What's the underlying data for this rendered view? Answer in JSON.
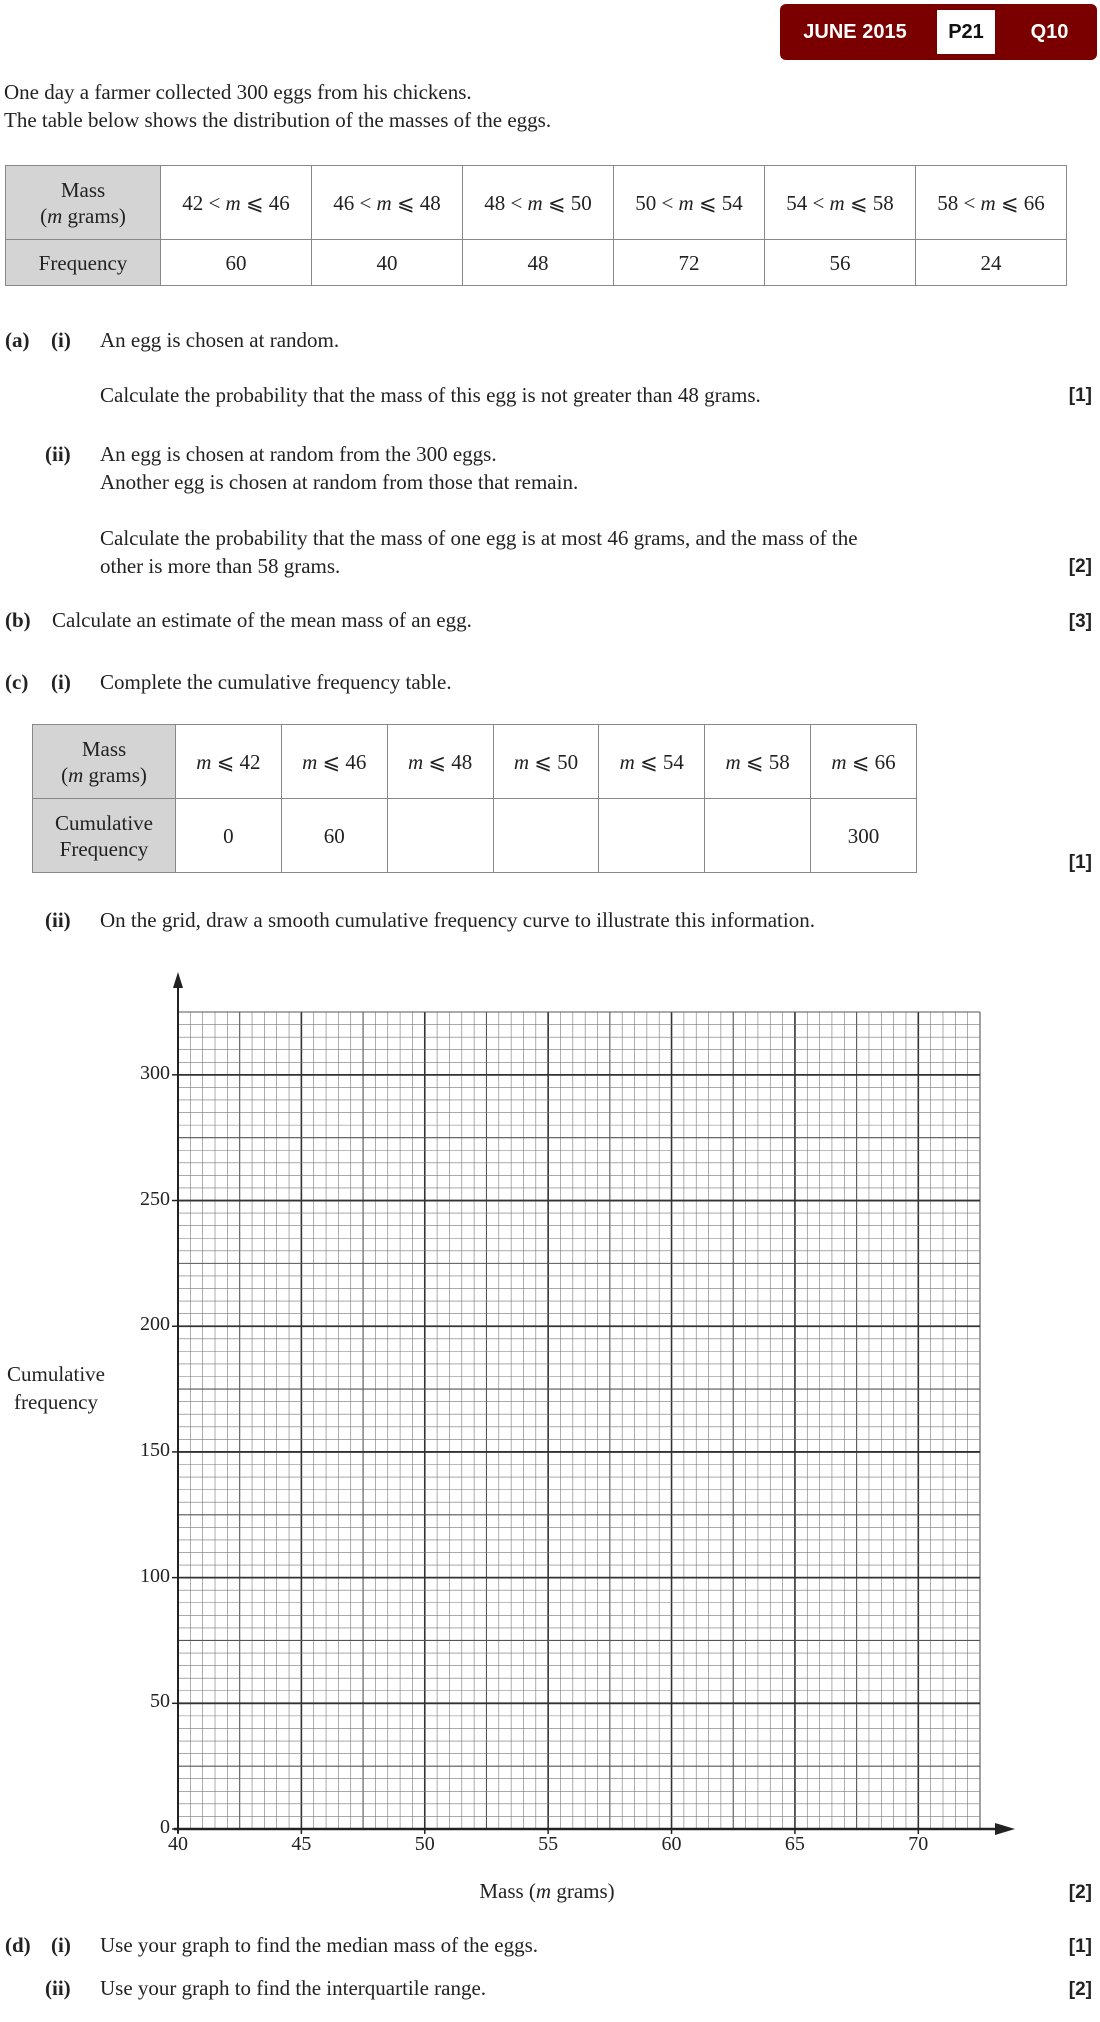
{
  "badge": {
    "session": "JUNE 2015",
    "paper": "P21",
    "question": "Q10",
    "color": "#7a0000"
  },
  "intro": [
    "One day a farmer collected 300 eggs from his chickens.",
    "The table below shows the distribution of the masses of the eggs."
  ],
  "freq_table": {
    "row_headers": [
      "Mass",
      "(m grams)",
      "Frequency"
    ],
    "classes": [
      "42 < m ⩽ 46",
      "46 < m ⩽ 48",
      "48 < m ⩽ 50",
      "50 < m ⩽ 54",
      "54 < m ⩽ 58",
      "58 < m ⩽ 66"
    ],
    "frequencies": [
      "60",
      "40",
      "48",
      "72",
      "56",
      "24"
    ]
  },
  "questions": {
    "a": {
      "label": "(a)",
      "i_label": "(i)",
      "i_text1": "An egg is chosen at random.",
      "i_text2": "Calculate the probability that the mass of this egg is not greater than 48 grams.",
      "i_mark": "[1]",
      "ii_label": "(ii)",
      "ii_text1": "An egg is chosen at random from the 300 eggs.",
      "ii_text2": "Another egg is chosen at random from those that remain.",
      "ii_text3": "Calculate the probability that the mass of one egg is at most 46 grams, and the mass of the",
      "ii_text4": "other is more than 58 grams.",
      "ii_mark": "[2]"
    },
    "b": {
      "label": "(b)",
      "text": "Calculate an estimate of the mean mass of an egg.",
      "mark": "[3]"
    },
    "c": {
      "label": "(c)",
      "i_label": "(i)",
      "i_text": "Complete the cumulative frequency table.",
      "i_mark": "[1]",
      "ii_label": "(ii)",
      "ii_text": "On the grid, draw a smooth cumulative frequency curve to illustrate this information.",
      "ii_mark": "[2]"
    },
    "d": {
      "label": "(d)",
      "i_label": "(i)",
      "i_text": "Use your graph to find the median mass of the eggs.",
      "i_mark": "[1]",
      "ii_label": "(ii)",
      "ii_text": "Use your graph to find the interquartile range.",
      "ii_mark": "[2]"
    }
  },
  "cf_table": {
    "row_headers": [
      "Mass",
      "(m grams)",
      "Cumulative",
      "Frequency"
    ],
    "bounds": [
      "m ⩽ 42",
      "m ⩽ 46",
      "m ⩽ 48",
      "m ⩽ 50",
      "m ⩽ 54",
      "m ⩽ 58",
      "m ⩽ 66"
    ],
    "values": [
      "0",
      "60",
      "",
      "",
      "",
      "",
      "300"
    ]
  },
  "grid": {
    "xlabel": "Mass (m grams)",
    "ylabel": [
      "Cumulative",
      "frequency"
    ],
    "xlim": [
      40,
      72.5
    ],
    "ylim": [
      0,
      325
    ],
    "xticks": [
      "40",
      "45",
      "50",
      "55",
      "60",
      "65",
      "70"
    ],
    "yticks": [
      "0",
      "50",
      "100",
      "150",
      "200",
      "250",
      "300"
    ],
    "x_minor_step": 0.5,
    "y_minor_step": 5
  }
}
